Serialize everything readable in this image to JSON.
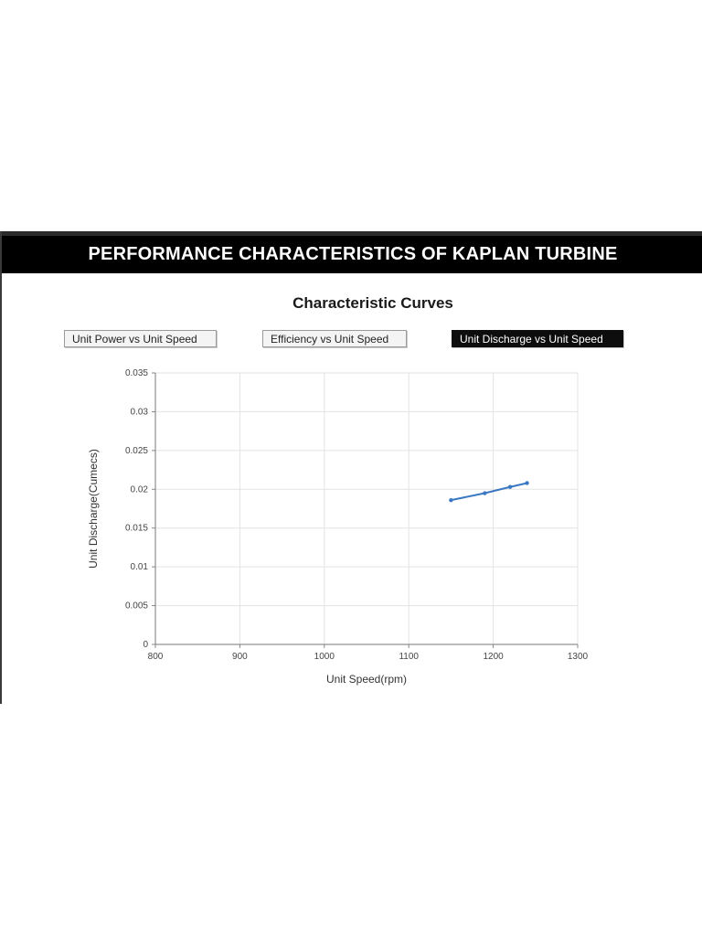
{
  "header": {
    "title": "PERFORMANCE CHARACTERISTICS OF KAPLAN TURBINE"
  },
  "chart_heading": "Characteristic Curves",
  "tabs": [
    {
      "label": "Unit Power vs Unit Speed",
      "active": false
    },
    {
      "label": "Efficiency vs Unit Speed",
      "active": false
    },
    {
      "label": "Unit Discharge vs Unit Speed",
      "active": true
    }
  ],
  "colors": {
    "series": "#3a78c2",
    "grid": "#e3e3e3",
    "active_tab": "#0d0d0d"
  },
  "chart_data": {
    "type": "line",
    "title": "",
    "xlabel": "Unit Speed(rpm)",
    "ylabel": "Unit Discharge(Cumecs)",
    "xlim": [
      800,
      1300
    ],
    "ylim": [
      0,
      0.035
    ],
    "x_ticks": [
      "800",
      "900",
      "1000",
      "1100",
      "1200",
      "1300"
    ],
    "y_ticks": [
      "0",
      "0.005",
      "0.01",
      "0.015",
      "0.02",
      "0.025",
      "0.03",
      "0.035"
    ],
    "x_tick_values": [
      800,
      900,
      1000,
      1100,
      1200,
      1300
    ],
    "y_tick_values": [
      0,
      0.005,
      0.01,
      0.015,
      0.02,
      0.025,
      0.03,
      0.035
    ],
    "grid": true,
    "legend": "none",
    "series": [
      {
        "x": [
          1150,
          1190,
          1220,
          1240
        ],
        "y": [
          0.0186,
          0.0195,
          0.0203,
          0.0208
        ]
      }
    ]
  }
}
